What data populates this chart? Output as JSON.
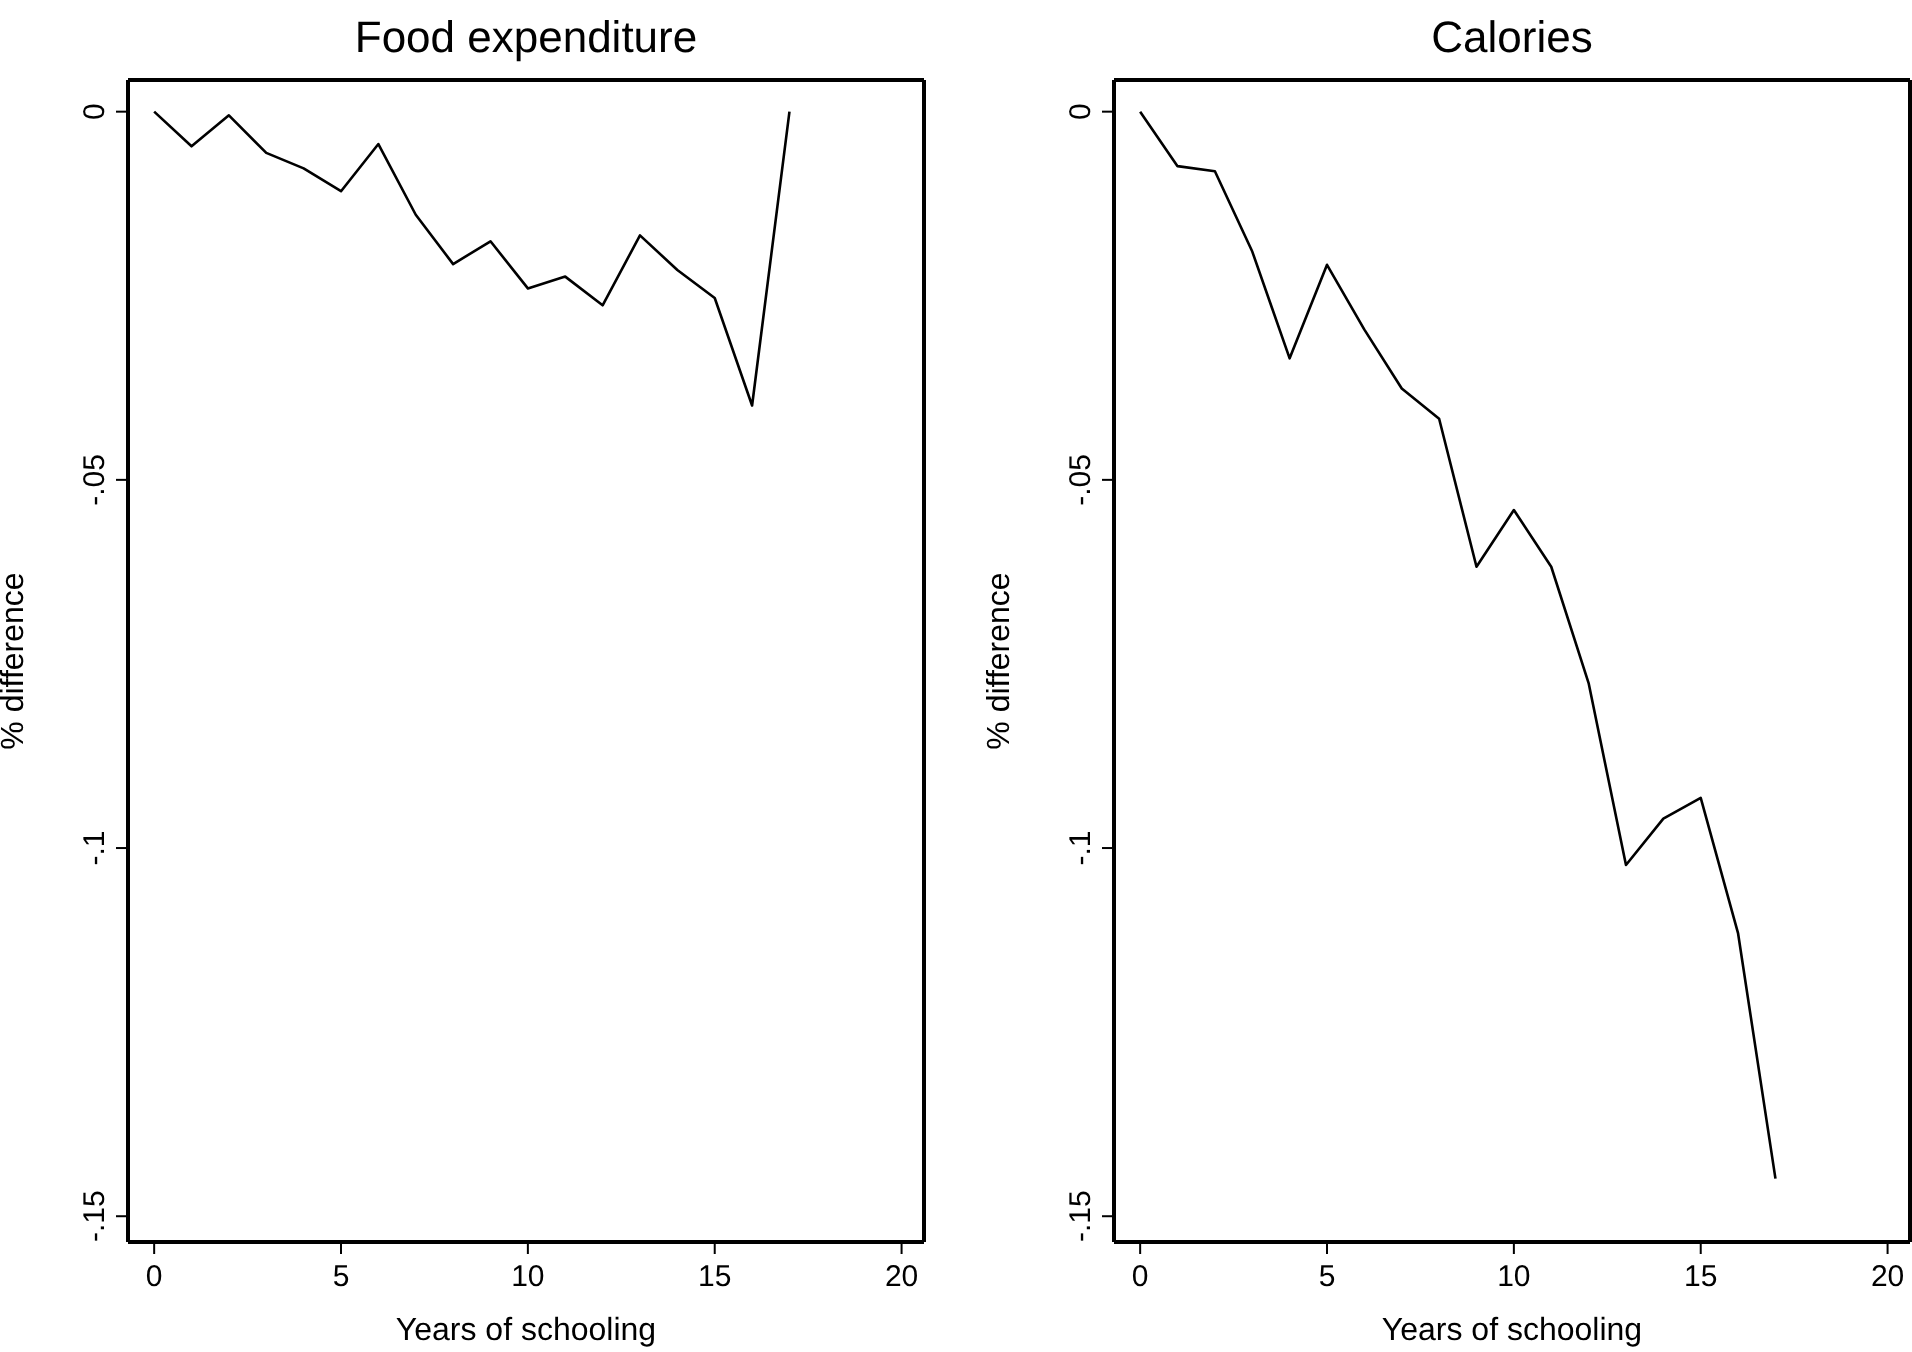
{
  "chart_data": [
    {
      "type": "line",
      "title": "Food expenditure",
      "xlabel": "Years of schooling",
      "ylabel": "% difference",
      "x": [
        0,
        1,
        2,
        3,
        4,
        5,
        6,
        7,
        8,
        9,
        10,
        11,
        12,
        13,
        14,
        15,
        16,
        17
      ],
      "series": [
        {
          "color": "#000000",
          "values": [
            0,
            -0.0047,
            -0.0005,
            -0.0056,
            -0.0077,
            -0.0108,
            -0.0044,
            -0.014,
            -0.0207,
            -0.0176,
            -0.024,
            -0.0224,
            -0.0263,
            -0.0168,
            -0.0215,
            -0.0253,
            -0.0399,
            0
          ]
        }
      ],
      "xlim": [
        -0.7,
        20.6
      ],
      "ylim": [
        -0.1535,
        0.0043
      ],
      "xticks": [
        0,
        5,
        10,
        15,
        20
      ],
      "yticks": [
        {
          "value": 0,
          "label": "0"
        },
        {
          "value": -0.05,
          "label": "-.05"
        },
        {
          "value": -0.1,
          "label": "-.1"
        },
        {
          "value": -0.15,
          "label": "-.15"
        }
      ],
      "grid": false
    },
    {
      "type": "line",
      "title": "Calories",
      "xlabel": "Years of schooling",
      "ylabel": "% difference",
      "x": [
        0,
        1,
        2,
        3,
        4,
        5,
        6,
        7,
        8,
        9,
        10,
        11,
        12,
        13,
        14,
        15,
        16,
        17
      ],
      "series": [
        {
          "color": "#000000",
          "values": [
            0,
            -0.0074,
            -0.0081,
            -0.019,
            -0.0335,
            -0.0208,
            -0.0296,
            -0.0376,
            -0.0417,
            -0.0618,
            -0.0541,
            -0.0618,
            -0.0776,
            -0.1023,
            -0.096,
            -0.0932,
            -0.1116,
            -0.1449
          ]
        }
      ],
      "xlim": [
        -0.7,
        20.6
      ],
      "ylim": [
        -0.1535,
        0.0043
      ],
      "xticks": [
        0,
        5,
        10,
        15,
        20
      ],
      "yticks": [
        {
          "value": 0,
          "label": "0"
        },
        {
          "value": -0.05,
          "label": "-.05"
        },
        {
          "value": -0.1,
          "label": "-.1"
        },
        {
          "value": -0.15,
          "label": "-.15"
        }
      ],
      "grid": false
    }
  ]
}
